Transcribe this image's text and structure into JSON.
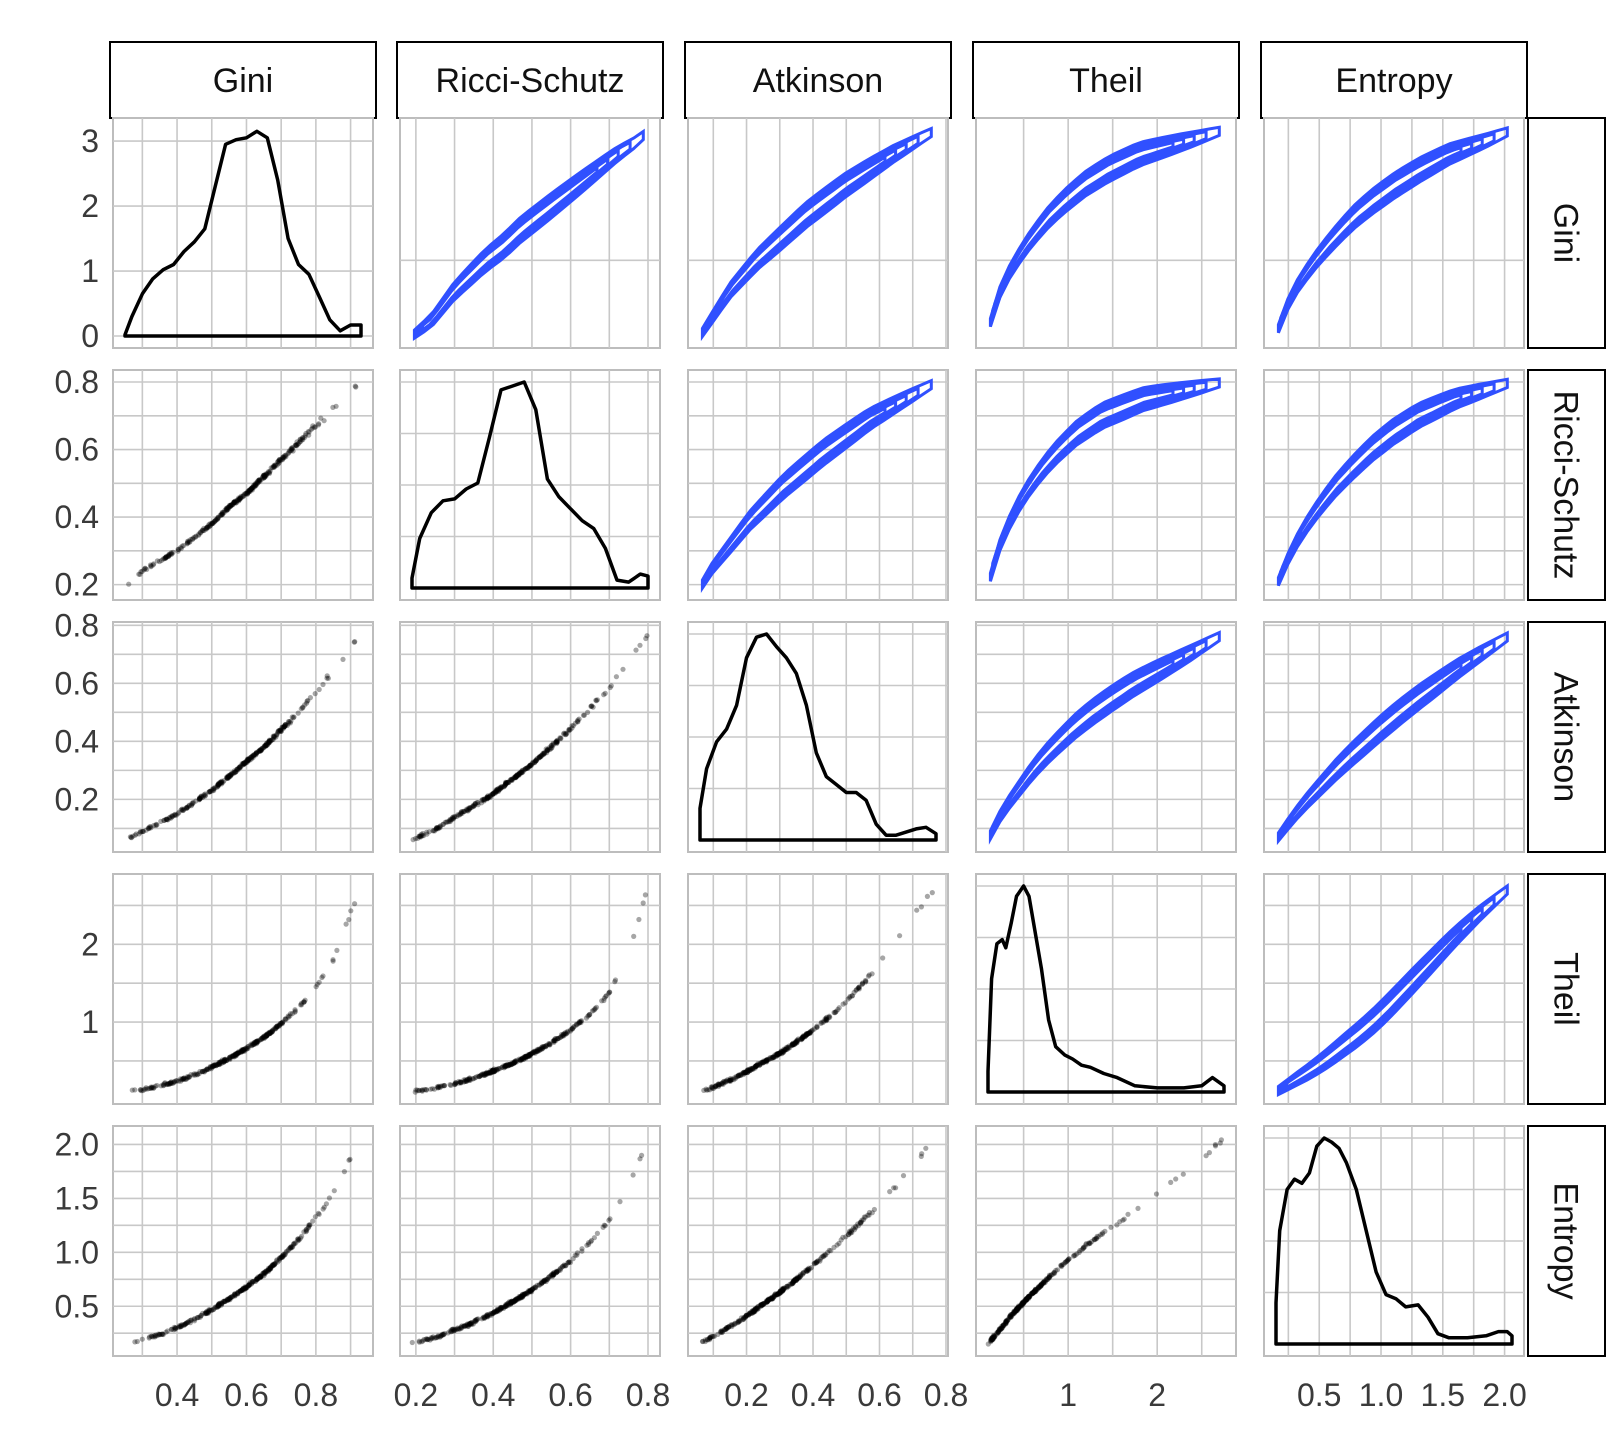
{
  "chart_data": {
    "type": "scatter-matrix",
    "title": "",
    "variables": [
      "Gini",
      "Ricci-Schutz",
      "Atkinson",
      "Theil",
      "Entropy"
    ],
    "ranges": {
      "Gini": [
        0.25,
        0.93
      ],
      "Ricci-Schutz": [
        0.19,
        0.8
      ],
      "Atkinson": [
        0.06,
        0.77
      ],
      "Theil": [
        0.1,
        2.75
      ],
      "Entropy": [
        0.15,
        2.06
      ]
    },
    "tick_labels": {
      "Gini": [
        "0.4",
        "0.6",
        "0.8"
      ],
      "Ricci-Schutz": [
        "0.2",
        "0.4",
        "0.6",
        "0.8"
      ],
      "Atkinson": [
        "0.2",
        "0.4",
        "0.6",
        "0.8"
      ],
      "Theil": [
        "1",
        "2"
      ],
      "Entropy": [
        "0.5",
        "1.0",
        "1.5",
        "2.0"
      ]
    },
    "row_tick_labels": {
      "Gini": [
        "0",
        "1",
        "2",
        "3"
      ],
      "Ricci-Schutz": [
        "0.2",
        "0.4",
        "0.6",
        "0.8"
      ],
      "Atkinson": [
        "0.2",
        "0.4",
        "0.6",
        "0.8"
      ],
      "Theil": [
        "1",
        "2"
      ],
      "Entropy": [
        "0.5",
        "1.0",
        "1.5",
        "2.0"
      ]
    },
    "diagonal": "density",
    "lower": "scatter",
    "upper": "density-contour",
    "contour_color": "#3050ff",
    "point_color": "#000000",
    "density_curves": {
      "Gini": [
        [
          0.25,
          0.02
        ],
        [
          0.27,
          0.3
        ],
        [
          0.3,
          0.65
        ],
        [
          0.33,
          0.88
        ],
        [
          0.36,
          1.02
        ],
        [
          0.39,
          1.1
        ],
        [
          0.42,
          1.3
        ],
        [
          0.45,
          1.45
        ],
        [
          0.48,
          1.65
        ],
        [
          0.51,
          2.3
        ],
        [
          0.54,
          2.95
        ],
        [
          0.57,
          3.02
        ],
        [
          0.6,
          3.05
        ],
        [
          0.63,
          3.15
        ],
        [
          0.66,
          3.05
        ],
        [
          0.69,
          2.4
        ],
        [
          0.72,
          1.5
        ],
        [
          0.75,
          1.1
        ],
        [
          0.78,
          0.95
        ],
        [
          0.81,
          0.6
        ],
        [
          0.84,
          0.25
        ],
        [
          0.87,
          0.08
        ],
        [
          0.9,
          0.17
        ],
        [
          0.93,
          0.17
        ]
      ],
      "Ricci-Schutz": [
        [
          0.19,
          0.05
        ],
        [
          0.21,
          0.25
        ],
        [
          0.24,
          0.38
        ],
        [
          0.27,
          0.44
        ],
        [
          0.3,
          0.45
        ],
        [
          0.33,
          0.5
        ],
        [
          0.36,
          0.53
        ],
        [
          0.39,
          0.76
        ],
        [
          0.42,
          1.0
        ],
        [
          0.45,
          1.02
        ],
        [
          0.48,
          1.04
        ],
        [
          0.51,
          0.9
        ],
        [
          0.54,
          0.55
        ],
        [
          0.57,
          0.46
        ],
        [
          0.6,
          0.4
        ],
        [
          0.63,
          0.34
        ],
        [
          0.66,
          0.3
        ],
        [
          0.69,
          0.2
        ],
        [
          0.72,
          0.04
        ],
        [
          0.75,
          0.03
        ],
        [
          0.78,
          0.07
        ],
        [
          0.8,
          0.06
        ]
      ],
      "Atkinson": [
        [
          0.06,
          0.2
        ],
        [
          0.08,
          0.45
        ],
        [
          0.11,
          0.62
        ],
        [
          0.14,
          0.7
        ],
        [
          0.17,
          0.85
        ],
        [
          0.2,
          1.15
        ],
        [
          0.23,
          1.28
        ],
        [
          0.26,
          1.3
        ],
        [
          0.29,
          1.22
        ],
        [
          0.32,
          1.15
        ],
        [
          0.35,
          1.05
        ],
        [
          0.38,
          0.85
        ],
        [
          0.41,
          0.55
        ],
        [
          0.44,
          0.4
        ],
        [
          0.47,
          0.35
        ],
        [
          0.5,
          0.3
        ],
        [
          0.53,
          0.3
        ],
        [
          0.56,
          0.25
        ],
        [
          0.59,
          0.1
        ],
        [
          0.62,
          0.03
        ],
        [
          0.65,
          0.03
        ],
        [
          0.68,
          0.05
        ],
        [
          0.71,
          0.07
        ],
        [
          0.74,
          0.08
        ],
        [
          0.77,
          0.04
        ]
      ],
      "Theil": [
        [
          0.1,
          0.1
        ],
        [
          0.14,
          0.55
        ],
        [
          0.2,
          0.72
        ],
        [
          0.26,
          0.74
        ],
        [
          0.3,
          0.7
        ],
        [
          0.36,
          0.82
        ],
        [
          0.42,
          0.95
        ],
        [
          0.5,
          1.0
        ],
        [
          0.56,
          0.95
        ],
        [
          0.62,
          0.8
        ],
        [
          0.7,
          0.6
        ],
        [
          0.78,
          0.35
        ],
        [
          0.86,
          0.22
        ],
        [
          0.96,
          0.18
        ],
        [
          1.05,
          0.16
        ],
        [
          1.15,
          0.13
        ],
        [
          1.25,
          0.12
        ],
        [
          1.4,
          0.09
        ],
        [
          1.55,
          0.07
        ],
        [
          1.75,
          0.03
        ],
        [
          2.0,
          0.02
        ],
        [
          2.3,
          0.02
        ],
        [
          2.5,
          0.03
        ],
        [
          2.62,
          0.07
        ],
        [
          2.75,
          0.03
        ]
      ],
      "Entropy": [
        [
          0.15,
          0.2
        ],
        [
          0.18,
          0.55
        ],
        [
          0.24,
          0.75
        ],
        [
          0.3,
          0.8
        ],
        [
          0.36,
          0.78
        ],
        [
          0.42,
          0.83
        ],
        [
          0.48,
          0.96
        ],
        [
          0.54,
          1.0
        ],
        [
          0.6,
          0.98
        ],
        [
          0.66,
          0.95
        ],
        [
          0.72,
          0.88
        ],
        [
          0.8,
          0.75
        ],
        [
          0.88,
          0.55
        ],
        [
          0.96,
          0.35
        ],
        [
          1.04,
          0.24
        ],
        [
          1.12,
          0.22
        ],
        [
          1.2,
          0.18
        ],
        [
          1.3,
          0.19
        ],
        [
          1.38,
          0.13
        ],
        [
          1.46,
          0.05
        ],
        [
          1.55,
          0.03
        ],
        [
          1.7,
          0.03
        ],
        [
          1.85,
          0.04
        ],
        [
          1.95,
          0.06
        ],
        [
          2.02,
          0.06
        ],
        [
          2.06,
          0.04
        ]
      ]
    },
    "relations": [
      {
        "x": "Gini",
        "y": "Ricci-Schutz",
        "points": [
          [
            0.25,
            0.19
          ],
          [
            0.3,
            0.24
          ],
          [
            0.35,
            0.27
          ],
          [
            0.4,
            0.3
          ],
          [
            0.45,
            0.34
          ],
          [
            0.5,
            0.38
          ],
          [
            0.55,
            0.43
          ],
          [
            0.6,
            0.47
          ],
          [
            0.65,
            0.52
          ],
          [
            0.7,
            0.57
          ],
          [
            0.75,
            0.62
          ],
          [
            0.8,
            0.67
          ],
          [
            0.85,
            0.72
          ],
          [
            0.9,
            0.78
          ],
          [
            0.93,
            0.8
          ]
        ]
      },
      {
        "x": "Gini",
        "y": "Atkinson",
        "points": [
          [
            0.25,
            0.06
          ],
          [
            0.3,
            0.09
          ],
          [
            0.35,
            0.12
          ],
          [
            0.4,
            0.15
          ],
          [
            0.45,
            0.19
          ],
          [
            0.5,
            0.23
          ],
          [
            0.55,
            0.28
          ],
          [
            0.6,
            0.33
          ],
          [
            0.65,
            0.38
          ],
          [
            0.7,
            0.44
          ],
          [
            0.75,
            0.5
          ],
          [
            0.8,
            0.57
          ],
          [
            0.85,
            0.64
          ],
          [
            0.9,
            0.72
          ],
          [
            0.93,
            0.77
          ]
        ]
      },
      {
        "x": "Gini",
        "y": "Theil",
        "points": [
          [
            0.25,
            0.1
          ],
          [
            0.3,
            0.13
          ],
          [
            0.35,
            0.18
          ],
          [
            0.4,
            0.24
          ],
          [
            0.45,
            0.32
          ],
          [
            0.5,
            0.42
          ],
          [
            0.55,
            0.53
          ],
          [
            0.6,
            0.66
          ],
          [
            0.65,
            0.8
          ],
          [
            0.7,
            0.98
          ],
          [
            0.75,
            1.18
          ],
          [
            0.8,
            1.45
          ],
          [
            0.85,
            1.8
          ],
          [
            0.9,
            2.4
          ],
          [
            0.93,
            2.75
          ]
        ]
      },
      {
        "x": "Gini",
        "y": "Entropy",
        "points": [
          [
            0.25,
            0.15
          ],
          [
            0.3,
            0.19
          ],
          [
            0.35,
            0.24
          ],
          [
            0.4,
            0.3
          ],
          [
            0.45,
            0.38
          ],
          [
            0.5,
            0.47
          ],
          [
            0.55,
            0.57
          ],
          [
            0.6,
            0.68
          ],
          [
            0.65,
            0.8
          ],
          [
            0.7,
            0.95
          ],
          [
            0.75,
            1.12
          ],
          [
            0.8,
            1.32
          ],
          [
            0.85,
            1.55
          ],
          [
            0.9,
            1.88
          ],
          [
            0.93,
            2.06
          ]
        ]
      },
      {
        "x": "Ricci-Schutz",
        "y": "Atkinson",
        "points": [
          [
            0.19,
            0.06
          ],
          [
            0.24,
            0.09
          ],
          [
            0.29,
            0.13
          ],
          [
            0.34,
            0.17
          ],
          [
            0.39,
            0.21
          ],
          [
            0.44,
            0.26
          ],
          [
            0.49,
            0.31
          ],
          [
            0.54,
            0.37
          ],
          [
            0.59,
            0.43
          ],
          [
            0.64,
            0.5
          ],
          [
            0.69,
            0.57
          ],
          [
            0.74,
            0.66
          ],
          [
            0.8,
            0.77
          ]
        ]
      },
      {
        "x": "Ricci-Schutz",
        "y": "Theil",
        "points": [
          [
            0.19,
            0.1
          ],
          [
            0.25,
            0.15
          ],
          [
            0.3,
            0.21
          ],
          [
            0.35,
            0.28
          ],
          [
            0.4,
            0.37
          ],
          [
            0.45,
            0.47
          ],
          [
            0.5,
            0.59
          ],
          [
            0.55,
            0.73
          ],
          [
            0.6,
            0.9
          ],
          [
            0.65,
            1.1
          ],
          [
            0.7,
            1.38
          ],
          [
            0.75,
            1.85
          ],
          [
            0.8,
            2.75
          ]
        ]
      },
      {
        "x": "Ricci-Schutz",
        "y": "Entropy",
        "points": [
          [
            0.19,
            0.15
          ],
          [
            0.25,
            0.21
          ],
          [
            0.3,
            0.28
          ],
          [
            0.35,
            0.35
          ],
          [
            0.4,
            0.44
          ],
          [
            0.45,
            0.54
          ],
          [
            0.5,
            0.65
          ],
          [
            0.55,
            0.78
          ],
          [
            0.6,
            0.92
          ],
          [
            0.65,
            1.09
          ],
          [
            0.7,
            1.3
          ],
          [
            0.75,
            1.6
          ],
          [
            0.8,
            2.06
          ]
        ]
      },
      {
        "x": "Atkinson",
        "y": "Theil",
        "points": [
          [
            0.06,
            0.1
          ],
          [
            0.1,
            0.16
          ],
          [
            0.15,
            0.25
          ],
          [
            0.2,
            0.36
          ],
          [
            0.25,
            0.48
          ],
          [
            0.3,
            0.6
          ],
          [
            0.35,
            0.74
          ],
          [
            0.4,
            0.9
          ],
          [
            0.45,
            1.07
          ],
          [
            0.5,
            1.27
          ],
          [
            0.55,
            1.5
          ],
          [
            0.6,
            1.75
          ],
          [
            0.65,
            2.05
          ],
          [
            0.7,
            2.35
          ],
          [
            0.77,
            2.75
          ]
        ]
      },
      {
        "x": "Atkinson",
        "y": "Entropy",
        "points": [
          [
            0.06,
            0.15
          ],
          [
            0.1,
            0.22
          ],
          [
            0.15,
            0.31
          ],
          [
            0.2,
            0.41
          ],
          [
            0.25,
            0.52
          ],
          [
            0.3,
            0.63
          ],
          [
            0.35,
            0.75
          ],
          [
            0.4,
            0.88
          ],
          [
            0.45,
            1.01
          ],
          [
            0.5,
            1.15
          ],
          [
            0.55,
            1.3
          ],
          [
            0.6,
            1.46
          ],
          [
            0.65,
            1.62
          ],
          [
            0.7,
            1.8
          ],
          [
            0.77,
            2.06
          ]
        ]
      },
      {
        "x": "Theil",
        "y": "Entropy",
        "points": [
          [
            0.1,
            0.15
          ],
          [
            0.25,
            0.3
          ],
          [
            0.4,
            0.45
          ],
          [
            0.55,
            0.58
          ],
          [
            0.7,
            0.7
          ],
          [
            0.85,
            0.82
          ],
          [
            1.0,
            0.93
          ],
          [
            1.2,
            1.06
          ],
          [
            1.4,
            1.18
          ],
          [
            1.6,
            1.3
          ],
          [
            1.8,
            1.42
          ],
          [
            2.1,
            1.6
          ],
          [
            2.4,
            1.8
          ],
          [
            2.75,
            2.06
          ]
        ]
      }
    ]
  }
}
